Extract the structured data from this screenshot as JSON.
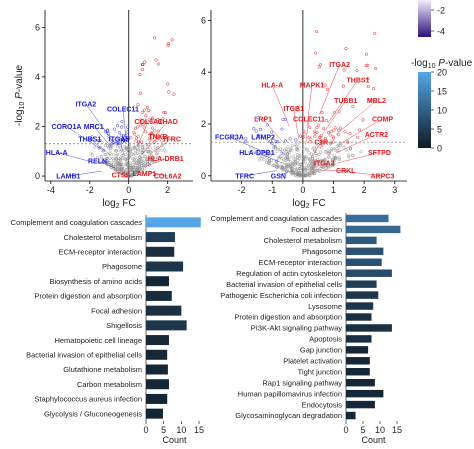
{
  "chart_data": [
    {
      "type": "scatter",
      "panel": "volcano-left",
      "xlabel": "log2 FC",
      "ylabel": "-log10 P-value",
      "xlim": [
        -4.3,
        3.3
      ],
      "ylim": [
        -0.2,
        6.7
      ],
      "xticks": [
        -4,
        -2,
        0,
        2
      ],
      "yticks": [
        0,
        2,
        4,
        6
      ],
      "threshold_y": 1.3,
      "labels": [
        {
          "text": "ITGA2",
          "x": -2.2,
          "y": 2.9,
          "color": "#1a1adb"
        },
        {
          "text": "COLEC11",
          "x": -0.3,
          "y": 2.7,
          "color": "#1a1adb"
        },
        {
          "text": "CORO1A",
          "x": -3.2,
          "y": 2.0,
          "color": "#1a1adb"
        },
        {
          "text": "MRC1",
          "x": -1.8,
          "y": 2.0,
          "color": "#1a1adb"
        },
        {
          "text": "THBS1",
          "x": -2.0,
          "y": 1.5,
          "color": "#1a1adb"
        },
        {
          "text": "ITGA5",
          "x": -0.5,
          "y": 1.5,
          "color": "#1a1adb"
        },
        {
          "text": "HLA-A",
          "x": -3.7,
          "y": 0.95,
          "color": "#1a1adb"
        },
        {
          "text": "RELN",
          "x": -1.6,
          "y": 0.6,
          "color": "#1a1adb"
        },
        {
          "text": "LAMB1",
          "x": -3.1,
          "y": 0.0,
          "color": "#1a1adb"
        },
        {
          "text": "COL6A1",
          "x": 1.0,
          "y": 2.2,
          "color": "#e8191d"
        },
        {
          "text": "CHAD",
          "x": 2.0,
          "y": 2.2,
          "color": "#e8191d"
        },
        {
          "text": "TNXB",
          "x": 1.5,
          "y": 1.6,
          "color": "#e8191d"
        },
        {
          "text": "TFRC",
          "x": 2.2,
          "y": 1.5,
          "color": "#e8191d"
        },
        {
          "text": "CTSS",
          "x": -0.4,
          "y": 0.05,
          "color": "#e8191d"
        },
        {
          "text": "HLA-DRB1",
          "x": 1.9,
          "y": 0.7,
          "color": "#e8191d"
        },
        {
          "text": "LAMP1",
          "x": 0.8,
          "y": 0.1,
          "color": "#e8191d"
        },
        {
          "text": "COL6A2",
          "x": 2.0,
          "y": 0.0,
          "color": "#e8191d"
        }
      ]
    },
    {
      "type": "scatter",
      "panel": "volcano-right",
      "xlabel": "log2 FC",
      "ylabel": "",
      "xlim": [
        -3.0,
        3.4
      ],
      "ylim": [
        -0.2,
        6.4
      ],
      "xticks": [
        -2,
        -1,
        0,
        1,
        2,
        3
      ],
      "yticks": [
        0,
        2,
        4,
        6
      ],
      "threshold_y": 1.3,
      "labels": [
        {
          "text": "ITGA2",
          "x": 1.2,
          "y": 4.3,
          "color": "#e8191d"
        },
        {
          "text": "THBS1",
          "x": 1.8,
          "y": 3.7,
          "color": "#e8191d"
        },
        {
          "text": "HLA-A",
          "x": -1.0,
          "y": 3.5,
          "color": "#e8191d"
        },
        {
          "text": "MAPK1",
          "x": 0.3,
          "y": 3.5,
          "color": "#e8191d"
        },
        {
          "text": "TUBB1",
          "x": 1.4,
          "y": 2.9,
          "color": "#e8191d"
        },
        {
          "text": "MBL2",
          "x": 2.4,
          "y": 2.9,
          "color": "#e8191d"
        },
        {
          "text": "ITGB1",
          "x": -0.3,
          "y": 2.6,
          "color": "#e8191d"
        },
        {
          "text": "LRP1",
          "x": -1.3,
          "y": 2.2,
          "color": "#e8191d"
        },
        {
          "text": "COLEC11",
          "x": 0.2,
          "y": 2.2,
          "color": "#e8191d"
        },
        {
          "text": "COMP",
          "x": 2.6,
          "y": 2.2,
          "color": "#e8191d"
        },
        {
          "text": "FCGR3A",
          "x": -2.4,
          "y": 1.5,
          "color": "#1a1adb"
        },
        {
          "text": "LAMP2",
          "x": -1.3,
          "y": 1.5,
          "color": "#1a1adb"
        },
        {
          "text": "ACTR2",
          "x": 2.4,
          "y": 1.6,
          "color": "#e8191d"
        },
        {
          "text": "C1R",
          "x": 0.6,
          "y": 1.3,
          "color": "#e8191d"
        },
        {
          "text": "HLA-DPB1",
          "x": -1.5,
          "y": 0.9,
          "color": "#1a1adb"
        },
        {
          "text": "SFTPD",
          "x": 2.5,
          "y": 0.9,
          "color": "#e8191d"
        },
        {
          "text": "ITGA3",
          "x": 0.7,
          "y": 0.5,
          "color": "#e8191d"
        },
        {
          "text": "TFRC",
          "x": -1.9,
          "y": 0.0,
          "color": "#1a1adb"
        },
        {
          "text": "GSN",
          "x": -0.8,
          "y": 0.0,
          "color": "#1a1adb"
        },
        {
          "text": "CRKL",
          "x": 1.4,
          "y": 0.2,
          "color": "#e8191d"
        },
        {
          "text": "ARPC3",
          "x": 2.6,
          "y": 0.0,
          "color": "#e8191d"
        }
      ]
    },
    {
      "type": "bar",
      "panel": "pathways-left",
      "orientation": "horizontal",
      "xlabel": "Count",
      "xlim": [
        0,
        15
      ],
      "xticks": [
        0,
        5,
        10,
        15
      ],
      "categories": [
        "Complement and coagulation cascades",
        "Cholesterol metabolism",
        "ECM-receptor interaction",
        "Phagosome",
        "Biosynthesis of amino acids",
        "Protein digestion and absorption",
        "Focal adhesion",
        "Shigellosis",
        "Hematopoietic cell lineage",
        "Bacterial invasion of epithelial cells",
        "Glutathione metabolism",
        "Carbon metabolism",
        "Staphylococcus aureus infection",
        "Glycolysis / Gluconeogenesis"
      ],
      "values": [
        15.5,
        8.2,
        8.0,
        10.5,
        6.5,
        7.3,
        10.0,
        11.5,
        6.5,
        6.0,
        6.2,
        6.5,
        6.0,
        4.8
      ],
      "neglog10p": [
        20,
        5,
        3,
        4,
        1.5,
        2.5,
        3,
        4,
        2,
        2,
        2,
        2,
        1.5,
        1.5
      ]
    },
    {
      "type": "bar",
      "panel": "pathways-right",
      "orientation": "horizontal",
      "xlabel": "Count",
      "xlim": [
        0,
        15
      ],
      "xticks": [
        0,
        5,
        10,
        15
      ],
      "categories": [
        "Complement and coagulation cascades",
        "Focal adhesion",
        "Cholesterol metabolism",
        "Phagosome",
        "ECM-receptor interaction",
        "Regulation of actin cytoskeleton",
        "Bacterial invasion of epithelial cells",
        "Pathogenic Escherichia coli infection",
        "Lysosome",
        "Protein digestion and absorption",
        "PI3K-Akt signaling pathway",
        "Apoptosis",
        "Gap junction",
        "Platelet activation",
        "Tight junction",
        "Rap1 signaling pathway",
        "Human papillomavirus infection",
        "Endocytosis",
        "Glycosaminoglycan degradation"
      ],
      "values": [
        12.5,
        16.0,
        9.0,
        11.0,
        10.5,
        13.5,
        9.0,
        9.5,
        8.0,
        7.5,
        13.5,
        7.5,
        6.5,
        7.0,
        7.0,
        8.5,
        11.0,
        8.5,
        2.8
      ],
      "neglog10p": [
        12,
        11,
        9,
        8,
        8,
        7,
        5,
        4,
        4,
        3,
        3,
        3,
        2,
        2,
        2,
        2,
        2,
        2,
        1.5
      ]
    }
  ],
  "legend": {
    "top_ticks": [
      "-2",
      "-4"
    ],
    "title": "-log10 P-value",
    "ticks": [
      "20",
      "15",
      "10",
      "5",
      "0"
    ],
    "range": [
      0,
      20
    ]
  },
  "colors": {
    "up": "#e8191d",
    "down": "#1a1adb",
    "ns": "#8c8c8c",
    "bar_low": "#0f1a24",
    "bar_high": "#56a6e8"
  }
}
